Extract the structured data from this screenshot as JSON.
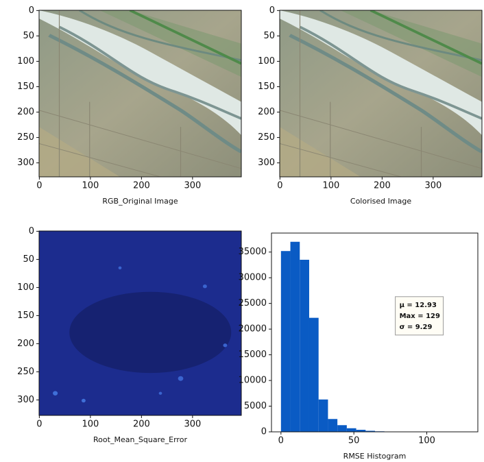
{
  "chart_data": [
    {
      "type": "image",
      "xlabel": "RGB_Original Image",
      "style": "aerial",
      "xlim": [
        -0.5,
        395.5
      ],
      "ylim": [
        327.5,
        -0.5
      ],
      "xticks": [
        0,
        100,
        200,
        300
      ],
      "yticks": [
        0,
        50,
        100,
        150,
        200,
        250,
        300
      ]
    },
    {
      "type": "image",
      "xlabel": "Colorised Image",
      "style": "aerial",
      "xlim": [
        -0.5,
        395.5
      ],
      "ylim": [
        327.5,
        -0.5
      ],
      "xticks": [
        0,
        100,
        200,
        300
      ],
      "yticks": [
        0,
        50,
        100,
        150,
        200,
        250,
        300
      ]
    },
    {
      "type": "image",
      "xlabel": "Root_Mean_Square_Error",
      "style": "heat",
      "xlim": [
        -0.5,
        395.5
      ],
      "ylim": [
        327.5,
        -0.5
      ],
      "xticks": [
        0,
        100,
        200,
        300
      ],
      "yticks": [
        0,
        50,
        100,
        150,
        200,
        250,
        300
      ]
    },
    {
      "type": "histogram",
      "xlabel": "RMSE Histogram",
      "color": "#0a5bc4",
      "bins": [
        0,
        6.45,
        12.9,
        19.35,
        25.8,
        32.25,
        38.7,
        45.15,
        51.6,
        58.05,
        64.5,
        70.95,
        77.4,
        83.85,
        90.3,
        96.75,
        103.2,
        109.65,
        116.1,
        122.55,
        129
      ],
      "counts": [
        35200,
        37000,
        33500,
        22200,
        6300,
        2500,
        1300,
        700,
        400,
        200,
        100,
        60,
        40,
        20,
        10,
        5,
        3,
        2,
        1,
        1
      ],
      "annotation": [
        "μ = 12.93",
        "Max = 129",
        "σ = 9.29"
      ],
      "xlim": [
        -6.5,
        135
      ],
      "ylim": [
        0,
        38700
      ],
      "xticks": [
        0,
        50,
        100
      ],
      "yticks": [
        0,
        5000,
        10000,
        15000,
        20000,
        25000,
        30000,
        35000
      ]
    }
  ]
}
